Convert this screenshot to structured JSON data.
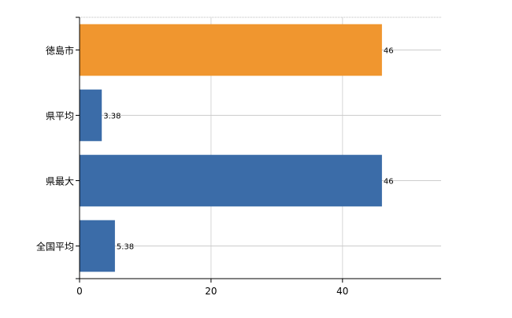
{
  "chart_data": {
    "type": "bar",
    "orientation": "horizontal",
    "categories": [
      "徳島市",
      "県平均",
      "県最大",
      "全国平均"
    ],
    "values": [
      46,
      3.38,
      46,
      5.38
    ],
    "value_labels": [
      "46",
      "3.38",
      "46",
      "5.38"
    ],
    "bar_colors": [
      "#f0962f",
      "#3b6ca8",
      "#3b6ca8",
      "#3b6ca8"
    ],
    "xlim": [
      0,
      55
    ],
    "x_ticks": [
      0,
      20,
      40
    ],
    "x_tick_labels": [
      "0",
      "20",
      "40"
    ],
    "grid": true,
    "title": "",
    "xlabel": "",
    "ylabel": ""
  }
}
